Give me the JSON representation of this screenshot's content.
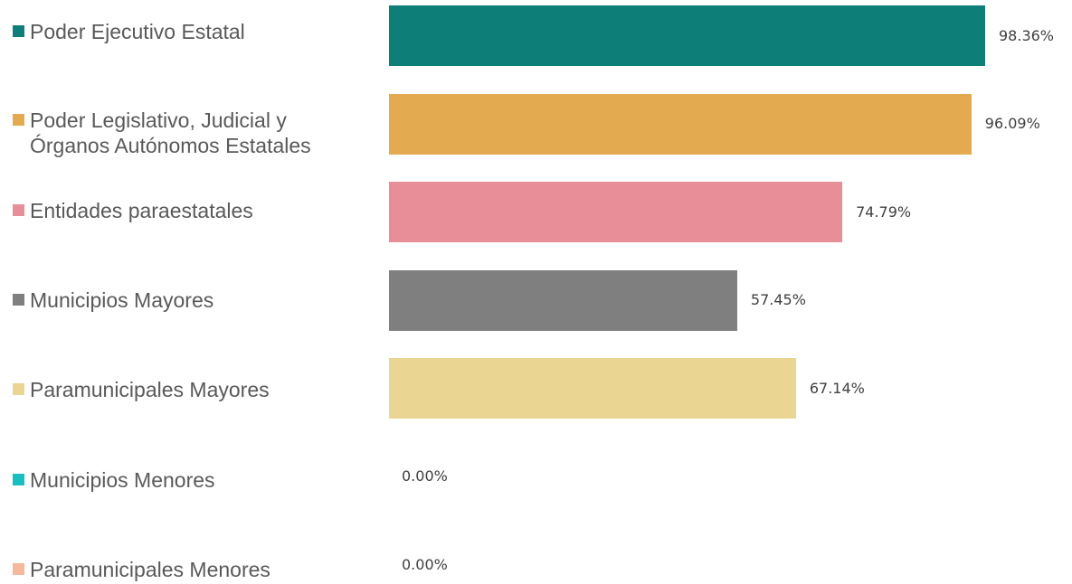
{
  "chart_data": {
    "type": "bar",
    "orientation": "horizontal",
    "legend_position": "left",
    "grid": false,
    "xlim": [
      0,
      100
    ],
    "value_format": "percent_2dp",
    "categories": [
      "Poder Ejecutivo Estatal",
      "Poder Legislativo, Judicial y Órganos Autónomos Estatales",
      "Entidades paraestatales",
      "Municipios Mayores",
      "Paramunicipales Mayores",
      "Municipios Menores",
      "Paramunicipales Menores"
    ],
    "legend_lines": [
      [
        "Poder Ejecutivo Estatal"
      ],
      [
        "Poder Legislativo, Judicial y",
        "Órganos Autónomos Estatales"
      ],
      [
        "Entidades paraestatales"
      ],
      [
        "Municipios Mayores"
      ],
      [
        "Paramunicipales Mayores"
      ],
      [
        "Municipios Menores"
      ],
      [
        "Paramunicipales Menores"
      ]
    ],
    "values": [
      98.36,
      96.09,
      74.79,
      57.45,
      67.14,
      0.0,
      0.0
    ],
    "value_labels": [
      "98.36%",
      "96.09%",
      "74.79%",
      "57.45%",
      "67.14%",
      "0.00%",
      "0.00%"
    ],
    "colors": [
      "#0e7f78",
      "#e4aa50",
      "#e88e98",
      "#7f7f7f",
      "#ebd592",
      "#17bfc1",
      "#f4b89a"
    ]
  }
}
